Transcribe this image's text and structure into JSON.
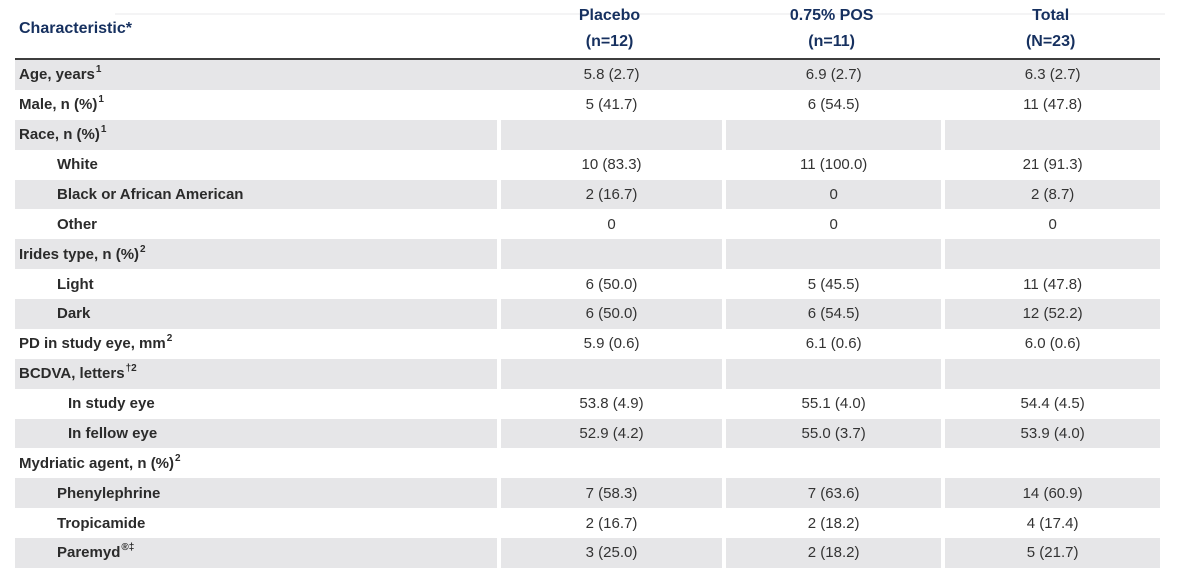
{
  "colors": {
    "navy": "#16305f",
    "row_shade": "#e6e6e8",
    "header_rule": "#3d3d3d",
    "label_text": "#2b2b2b",
    "value_text": "#333333"
  },
  "header": {
    "characteristic": "Characteristic*",
    "columns": [
      {
        "line1": "Placebo",
        "line2": "(n=12)"
      },
      {
        "line1": "0.75% POS",
        "line2": "(n=11)"
      },
      {
        "line1": "Total",
        "line2": "(N=23)"
      }
    ]
  },
  "rows": [
    {
      "label": "Age, years",
      "sup": "1",
      "values": [
        "5.8 (2.7)",
        "6.9 (2.7)",
        "6.3 (2.7)"
      ]
    },
    {
      "label": "Male, n (%)",
      "sup": "1",
      "values": [
        "5 (41.7)",
        "6 (54.5)",
        "11 (47.8)"
      ]
    },
    {
      "label": "Race, n (%)",
      "sup": "1",
      "values": [
        "",
        "",
        ""
      ]
    },
    {
      "label": "White",
      "values": [
        "10 (83.3)",
        "11 (100.0)",
        "21 (91.3)"
      ]
    },
    {
      "label": "Black or African American",
      "values": [
        "2 (16.7)",
        "0",
        "2 (8.7)"
      ]
    },
    {
      "label": "Other",
      "values": [
        "0",
        "0",
        "0"
      ]
    },
    {
      "label": "Irides type, n (%)",
      "sup": "2",
      "values": [
        "",
        "",
        ""
      ]
    },
    {
      "label": "Light",
      "values": [
        "6 (50.0)",
        "5 (45.5)",
        "11 (47.8)"
      ]
    },
    {
      "label": "Dark",
      "values": [
        "6 (50.0)",
        "6 (54.5)",
        "12 (52.2)"
      ]
    },
    {
      "label": "PD in study eye, mm",
      "sup": "2",
      "values": [
        "5.9 (0.6)",
        "6.1 (0.6)",
        "6.0 (0.6)"
      ]
    },
    {
      "label": "BCDVA, letters",
      "sup": "†2",
      "values": [
        "",
        "",
        ""
      ]
    },
    {
      "label": "In study eye",
      "values": [
        "53.8 (4.9)",
        "55.1 (4.0)",
        "54.4 (4.5)"
      ]
    },
    {
      "label": "In fellow eye",
      "values": [
        "52.9 (4.2)",
        "55.0 (3.7)",
        "53.9 (4.0)"
      ]
    },
    {
      "label": "Mydriatic agent, n (%)",
      "sup": "2",
      "values": [
        "",
        "",
        ""
      ]
    },
    {
      "label": "Phenylephrine",
      "values": [
        "7 (58.3)",
        "7 (63.6)",
        "14 (60.9)"
      ]
    },
    {
      "label": "Tropicamide",
      "values": [
        "2 (16.7)",
        "2 (18.2)",
        "4 (17.4)"
      ]
    },
    {
      "label": "Paremyd",
      "sup": "®‡",
      "values": [
        "3 (25.0)",
        "2 (18.2)",
        "5 (21.7)"
      ]
    }
  ]
}
